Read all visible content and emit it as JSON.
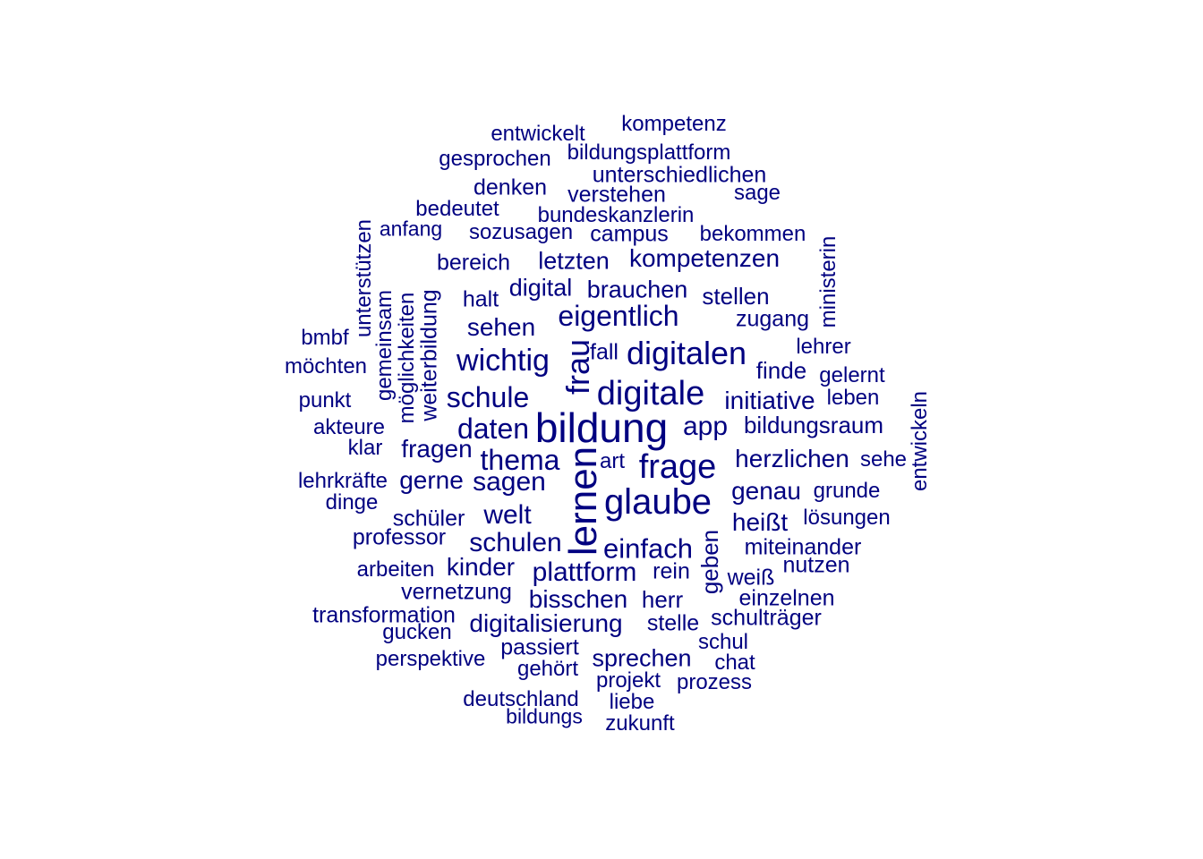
{
  "color": "#000080",
  "words": [
    {
      "text": "kompetenz",
      "w": 0.3
    },
    {
      "text": "entwickelt",
      "w": 0.3
    },
    {
      "text": "bildungsplattform",
      "w": 0.3
    },
    {
      "text": "gesprochen",
      "w": 0.3
    },
    {
      "text": "unterschiedlichen",
      "w": 0.32
    },
    {
      "text": "denken",
      "w": 0.32
    },
    {
      "text": "verstehen",
      "w": 0.32
    },
    {
      "text": "sage",
      "w": 0.3
    },
    {
      "text": "bedeutet",
      "w": 0.3
    },
    {
      "text": "bundeskanzlerin",
      "w": 0.3
    },
    {
      "text": "anfang",
      "w": 0.28
    },
    {
      "text": "sozusagen",
      "w": 0.3
    },
    {
      "text": "campus",
      "w": 0.32
    },
    {
      "text": "bekommen",
      "w": 0.3
    },
    {
      "text": "unterstützen",
      "w": 0.3
    },
    {
      "text": "bereich",
      "w": 0.32
    },
    {
      "text": "letzten",
      "w": 0.36
    },
    {
      "text": "kompetenzen",
      "w": 0.38
    },
    {
      "text": "ministerin",
      "w": 0.3
    },
    {
      "text": "gemeinsam",
      "w": 0.3
    },
    {
      "text": "möglichkeiten",
      "w": 0.3
    },
    {
      "text": "weiterbildung",
      "w": 0.32
    },
    {
      "text": "halt",
      "w": 0.32
    },
    {
      "text": "digital",
      "w": 0.36
    },
    {
      "text": "brauchen",
      "w": 0.36
    },
    {
      "text": "stellen",
      "w": 0.34
    },
    {
      "text": "eigentlich",
      "w": 0.46
    },
    {
      "text": "zugang",
      "w": 0.32
    },
    {
      "text": "sehen",
      "w": 0.38
    },
    {
      "text": "bmbf",
      "w": 0.3
    },
    {
      "text": "frau",
      "w": 0.52
    },
    {
      "text": "fall",
      "w": 0.32
    },
    {
      "text": "lehrer",
      "w": 0.3
    },
    {
      "text": "möchten",
      "w": 0.3
    },
    {
      "text": "wichtig",
      "w": 0.48
    },
    {
      "text": "digitalen",
      "w": 0.52
    },
    {
      "text": "finde",
      "w": 0.32
    },
    {
      "text": "gelernt",
      "w": 0.3
    },
    {
      "text": "punkt",
      "w": 0.3
    },
    {
      "text": "schule",
      "w": 0.44
    },
    {
      "text": "digitale",
      "w": 0.54
    },
    {
      "text": "initiative",
      "w": 0.36
    },
    {
      "text": "leben",
      "w": 0.3
    },
    {
      "text": "entwickeln",
      "w": 0.3
    },
    {
      "text": "akteure",
      "w": 0.3
    },
    {
      "text": "daten",
      "w": 0.44
    },
    {
      "text": "bildung",
      "w": 0.66
    },
    {
      "text": "app",
      "w": 0.4
    },
    {
      "text": "bildungsraum",
      "w": 0.34
    },
    {
      "text": "klar",
      "w": 0.3
    },
    {
      "text": "fragen",
      "w": 0.38
    },
    {
      "text": "thema",
      "w": 0.44
    },
    {
      "text": "art",
      "w": 0.3
    },
    {
      "text": "frage",
      "w": 0.56
    },
    {
      "text": "herzlichen",
      "w": 0.38
    },
    {
      "text": "sehe",
      "w": 0.3
    },
    {
      "text": "lehrkräfte",
      "w": 0.3
    },
    {
      "text": "gerne",
      "w": 0.36
    },
    {
      "text": "sagen",
      "w": 0.42
    },
    {
      "text": "lernen",
      "w": 0.64
    },
    {
      "text": "glaube",
      "w": 0.58
    },
    {
      "text": "genau",
      "w": 0.38
    },
    {
      "text": "grunde",
      "w": 0.3
    },
    {
      "text": "dinge",
      "w": 0.3
    },
    {
      "text": "schüler",
      "w": 0.32
    },
    {
      "text": "welt",
      "w": 0.4
    },
    {
      "text": "heißt",
      "w": 0.38
    },
    {
      "text": "lösungen",
      "w": 0.3
    },
    {
      "text": "professor",
      "w": 0.32
    },
    {
      "text": "schulen",
      "w": 0.4
    },
    {
      "text": "einfach",
      "w": 0.42
    },
    {
      "text": "geben",
      "w": 0.34
    },
    {
      "text": "miteinander",
      "w": 0.32
    },
    {
      "text": "arbeiten",
      "w": 0.3
    },
    {
      "text": "kinder",
      "w": 0.38
    },
    {
      "text": "plattform",
      "w": 0.4
    },
    {
      "text": "rein",
      "w": 0.32
    },
    {
      "text": "weiß",
      "w": 0.32
    },
    {
      "text": "nutzen",
      "w": 0.32
    },
    {
      "text": "vernetzung",
      "w": 0.32
    },
    {
      "text": "bisschen",
      "w": 0.38
    },
    {
      "text": "herr",
      "w": 0.34
    },
    {
      "text": "einzelnen",
      "w": 0.32
    },
    {
      "text": "transformation",
      "w": 0.32
    },
    {
      "text": "digitalisierung",
      "w": 0.38
    },
    {
      "text": "stelle",
      "w": 0.32
    },
    {
      "text": "schulträger",
      "w": 0.32
    },
    {
      "text": "gucken",
      "w": 0.3
    },
    {
      "text": "passiert",
      "w": 0.32
    },
    {
      "text": "schul",
      "w": 0.3
    },
    {
      "text": "perspektive",
      "w": 0.3
    },
    {
      "text": "sprechen",
      "w": 0.36
    },
    {
      "text": "gehört",
      "w": 0.3
    },
    {
      "text": "chat",
      "w": 0.3
    },
    {
      "text": "projekt",
      "w": 0.3
    },
    {
      "text": "prozess",
      "w": 0.3
    },
    {
      "text": "deutschland",
      "w": 0.3
    },
    {
      "text": "liebe",
      "w": 0.3
    },
    {
      "text": "bildungs",
      "w": 0.28
    },
    {
      "text": "zukunft",
      "w": 0.3
    }
  ]
}
